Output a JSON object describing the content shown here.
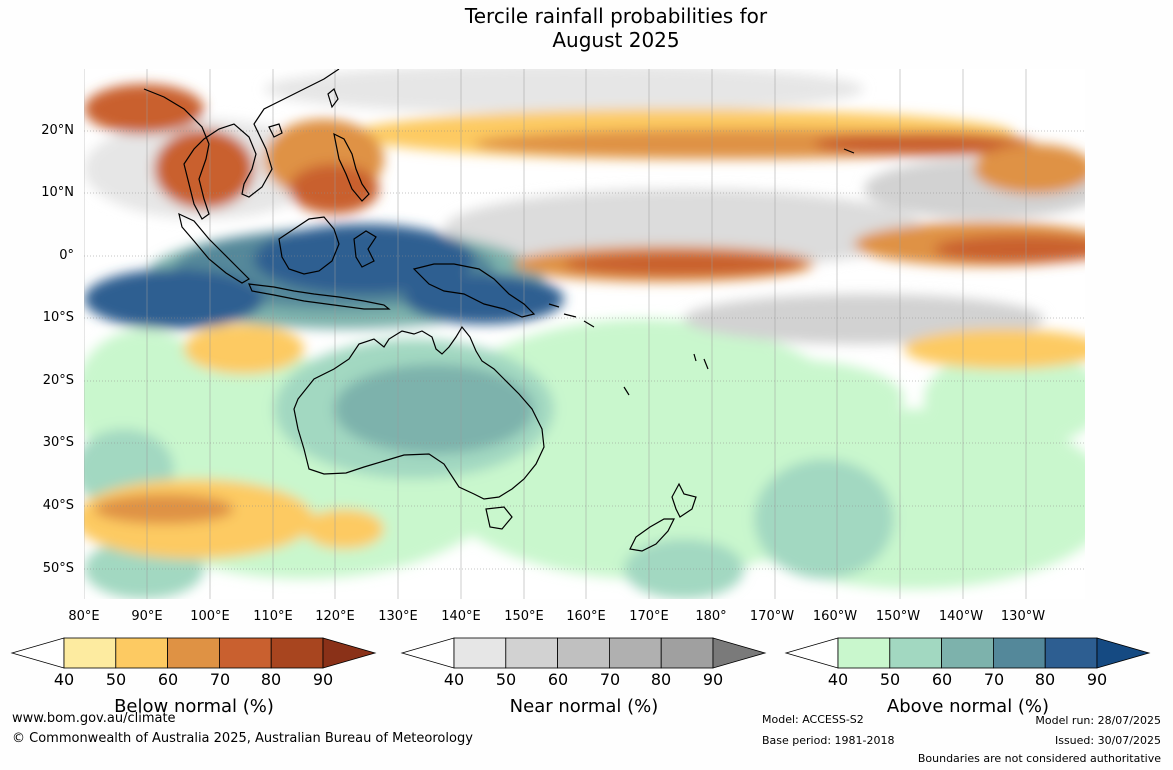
{
  "title": {
    "line1": "Tercile rainfall probabilities for",
    "line2": "August 2025"
  },
  "map": {
    "lat_labels": [
      "20°N",
      "10°N",
      "0°",
      "10°S",
      "20°S",
      "30°S",
      "40°S",
      "50°S"
    ],
    "lon_labels": [
      "80°E",
      "90°E",
      "100°E",
      "110°E",
      "120°E",
      "130°E",
      "140°E",
      "150°E",
      "160°E",
      "170°E",
      "180°",
      "170°W",
      "160°W",
      "150°W",
      "140°W",
      "130°W"
    ],
    "colors": {
      "ocean_base": "#ffffff",
      "coastline": "#000000",
      "gridline": "#8c8c8c"
    }
  },
  "legends": [
    {
      "name": "below",
      "title": "Below normal (%)",
      "ticks": [
        "40",
        "50",
        "60",
        "70",
        "80",
        "90"
      ],
      "colors": [
        "#ffffff",
        "#fdeba0",
        "#fdca62",
        "#df9244",
        "#c9602f",
        "#a8451f",
        "#8a3118"
      ]
    },
    {
      "name": "near",
      "title": "Near normal (%)",
      "ticks": [
        "40",
        "50",
        "60",
        "70",
        "80",
        "90"
      ],
      "colors": [
        "#ffffff",
        "#e6e6e6",
        "#d2d2d2",
        "#c0c0c0",
        "#b0b0b0",
        "#a0a0a0",
        "#7a7a7a"
      ]
    },
    {
      "name": "above",
      "title": "Above normal (%)",
      "ticks": [
        "40",
        "50",
        "60",
        "70",
        "80",
        "90"
      ],
      "colors": [
        "#ffffff",
        "#c9f7cd",
        "#a2d8c1",
        "#7db2ac",
        "#54889a",
        "#2d5e91",
        "#154a82"
      ]
    }
  ],
  "footer": {
    "website": "www.bom.gov.au/climate",
    "copyright": "© Commonwealth of Australia 2025, Australian Bureau of Meteorology",
    "model": "Model: ACCESS-S2",
    "base_period": "Base period: 1981-2018",
    "model_run": "Model run: 28/07/2025",
    "issued": "Issued: 30/07/2025",
    "disclaimer": "Boundaries are not considered authoritative"
  }
}
